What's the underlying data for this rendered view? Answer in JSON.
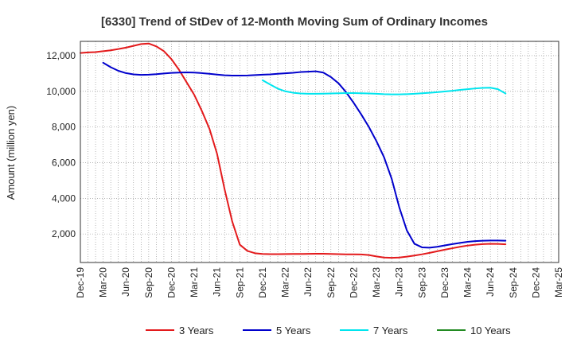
{
  "chart_data": {
    "type": "line",
    "title": "[6330]  Trend of StDev of 12-Month Moving Sum of Ordinary Incomes",
    "xlabel": "",
    "ylabel": "Amount (million yen)",
    "ylim": [
      400,
      12800
    ],
    "yticks": [
      2000,
      4000,
      6000,
      8000,
      10000,
      12000
    ],
    "ytick_labels": [
      "2,000",
      "4,000",
      "6,000",
      "8,000",
      "10,000",
      "12,000"
    ],
    "xticks": [
      "Dec-19",
      "Mar-20",
      "Jun-20",
      "Sep-20",
      "Dec-20",
      "Mar-21",
      "Jun-21",
      "Sep-21",
      "Dec-21",
      "Mar-22",
      "Jun-22",
      "Sep-22",
      "Dec-22",
      "Mar-23",
      "Jun-23",
      "Sep-23",
      "Dec-23",
      "Mar-24",
      "Jun-24",
      "Sep-24",
      "Dec-24",
      "Mar-25"
    ],
    "grid": true,
    "legend_position": "bottom",
    "series": [
      {
        "name": "3 Years",
        "color": "#e31a1c",
        "points": [
          [
            0,
            12150
          ],
          [
            1,
            12180
          ],
          [
            2,
            12200
          ],
          [
            3,
            12250
          ],
          [
            4,
            12300
          ],
          [
            5,
            12370
          ],
          [
            6,
            12450
          ],
          [
            7,
            12550
          ],
          [
            8,
            12650
          ],
          [
            9,
            12680
          ],
          [
            10,
            12520
          ],
          [
            11,
            12250
          ],
          [
            12,
            11800
          ],
          [
            13,
            11200
          ],
          [
            14,
            10500
          ],
          [
            15,
            9800
          ],
          [
            16,
            8900
          ],
          [
            17,
            7900
          ],
          [
            18,
            6500
          ],
          [
            19,
            4500
          ],
          [
            20,
            2700
          ],
          [
            21,
            1400
          ],
          [
            22,
            1050
          ],
          [
            23,
            920
          ],
          [
            24,
            880
          ],
          [
            25,
            870
          ],
          [
            26,
            870
          ],
          [
            27,
            875
          ],
          [
            28,
            880
          ],
          [
            29,
            880
          ],
          [
            30,
            885
          ],
          [
            31,
            890
          ],
          [
            32,
            890
          ],
          [
            33,
            880
          ],
          [
            34,
            870
          ],
          [
            35,
            860
          ],
          [
            36,
            860
          ],
          [
            37,
            850
          ],
          [
            38,
            820
          ],
          [
            39,
            740
          ],
          [
            40,
            680
          ],
          [
            41,
            660
          ],
          [
            42,
            680
          ],
          [
            43,
            730
          ],
          [
            44,
            790
          ],
          [
            45,
            860
          ],
          [
            46,
            940
          ],
          [
            47,
            1030
          ],
          [
            48,
            1120
          ],
          [
            49,
            1200
          ],
          [
            50,
            1280
          ],
          [
            51,
            1350
          ],
          [
            52,
            1400
          ],
          [
            53,
            1430
          ],
          [
            54,
            1450
          ],
          [
            55,
            1440
          ],
          [
            56,
            1420
          ]
        ]
      },
      {
        "name": "5 Years",
        "color": "#0000cc",
        "points": [
          [
            3,
            11600
          ],
          [
            4,
            11350
          ],
          [
            5,
            11150
          ],
          [
            6,
            11020
          ],
          [
            7,
            10950
          ],
          [
            8,
            10920
          ],
          [
            9,
            10930
          ],
          [
            10,
            10960
          ],
          [
            11,
            11000
          ],
          [
            12,
            11030
          ],
          [
            13,
            11050
          ],
          [
            14,
            11060
          ],
          [
            15,
            11050
          ],
          [
            16,
            11020
          ],
          [
            17,
            10980
          ],
          [
            18,
            10940
          ],
          [
            19,
            10900
          ],
          [
            20,
            10880
          ],
          [
            21,
            10880
          ],
          [
            22,
            10890
          ],
          [
            23,
            10910
          ],
          [
            24,
            10930
          ],
          [
            25,
            10950
          ],
          [
            26,
            10980
          ],
          [
            27,
            11010
          ],
          [
            28,
            11040
          ],
          [
            29,
            11080
          ],
          [
            30,
            11100
          ],
          [
            31,
            11120
          ],
          [
            32,
            11050
          ],
          [
            33,
            10800
          ],
          [
            34,
            10450
          ],
          [
            35,
            9950
          ],
          [
            36,
            9350
          ],
          [
            37,
            8700
          ],
          [
            38,
            8000
          ],
          [
            39,
            7200
          ],
          [
            40,
            6300
          ],
          [
            41,
            5100
          ],
          [
            42,
            3500
          ],
          [
            43,
            2200
          ],
          [
            44,
            1450
          ],
          [
            45,
            1250
          ],
          [
            46,
            1230
          ],
          [
            47,
            1280
          ],
          [
            48,
            1360
          ],
          [
            49,
            1430
          ],
          [
            50,
            1500
          ],
          [
            51,
            1560
          ],
          [
            52,
            1600
          ],
          [
            53,
            1620
          ],
          [
            54,
            1630
          ],
          [
            55,
            1630
          ],
          [
            56,
            1620
          ]
        ]
      },
      {
        "name": "7 Years",
        "color": "#00e5ee",
        "points": [
          [
            24,
            10620
          ],
          [
            25,
            10380
          ],
          [
            26,
            10150
          ],
          [
            27,
            10000
          ],
          [
            28,
            9920
          ],
          [
            29,
            9880
          ],
          [
            30,
            9860
          ],
          [
            31,
            9860
          ],
          [
            32,
            9870
          ],
          [
            33,
            9880
          ],
          [
            34,
            9890
          ],
          [
            35,
            9900
          ],
          [
            36,
            9900
          ],
          [
            37,
            9890
          ],
          [
            38,
            9880
          ],
          [
            39,
            9860
          ],
          [
            40,
            9840
          ],
          [
            41,
            9830
          ],
          [
            42,
            9830
          ],
          [
            43,
            9840
          ],
          [
            44,
            9860
          ],
          [
            45,
            9890
          ],
          [
            46,
            9920
          ],
          [
            47,
            9950
          ],
          [
            48,
            9990
          ],
          [
            49,
            10030
          ],
          [
            50,
            10080
          ],
          [
            51,
            10120
          ],
          [
            52,
            10160
          ],
          [
            53,
            10190
          ],
          [
            54,
            10200
          ],
          [
            55,
            10120
          ],
          [
            56,
            9880
          ]
        ]
      },
      {
        "name": "10 Years",
        "color": "#228b22",
        "points": []
      }
    ]
  }
}
